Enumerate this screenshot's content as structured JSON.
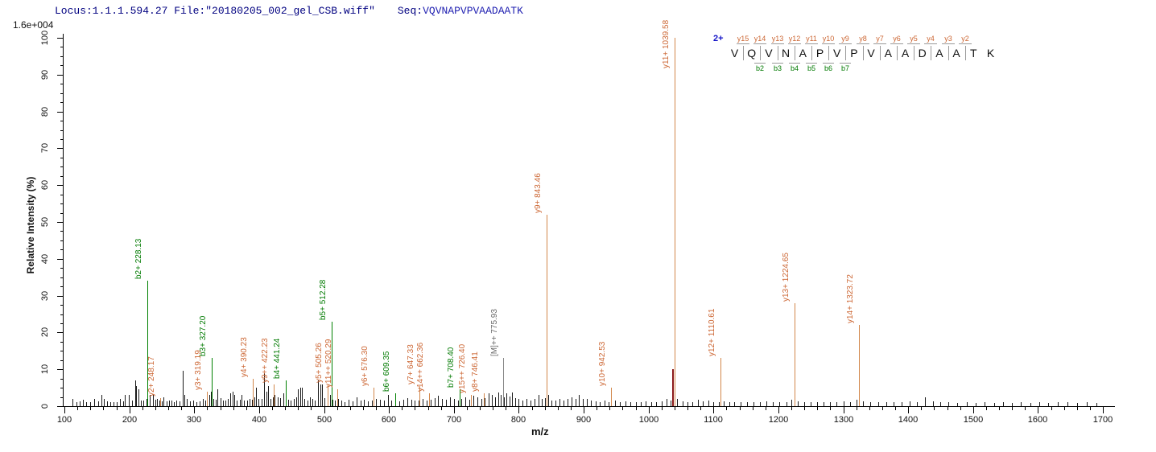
{
  "header": {
    "locus_file": "Locus:1.1.1.594.27 File:\"20180205_002_gel_CSB.wiff\"",
    "seq_label": "Seq:",
    "seq_value": "VQVNAPVPVAADAATK"
  },
  "colors": {
    "header_text": "#000080",
    "sequence_text": "#2222b2",
    "charge_text": "#1414c8",
    "b_ion": "#007a00",
    "b_line": "#008000",
    "y_ion": "#cc6633",
    "y_line": "#d2874b",
    "precursor": "#666666",
    "precursor_line": "#888888",
    "isotope_line": "#8b1a1a",
    "noise_line": "#1a1a1a",
    "axis": "#000000"
  },
  "chart_data": {
    "type": "bar",
    "subtype": "ms2-fragment-spectrum",
    "xlabel": "m/z",
    "ylabel": "Relative  Intensity  (%)",
    "y_scale_label": "1.6e+004",
    "xlim": [
      100,
      1700
    ],
    "ylim": [
      0,
      100
    ],
    "x_major_tick_step": 100,
    "x_minor_tick_step": 20,
    "y_major_tick_step": 10,
    "y_minor_tick_step": 2.5,
    "x_ticks": [
      100,
      200,
      300,
      400,
      500,
      600,
      700,
      800,
      900,
      1000,
      1100,
      1200,
      1300,
      1400,
      1500,
      1600,
      1700
    ],
    "y_ticks": [
      0,
      10,
      20,
      30,
      40,
      50,
      60,
      70,
      80,
      90,
      100
    ],
    "grid": false,
    "legend": "none",
    "peptide": {
      "charge_label": "2+",
      "residues": [
        "V",
        "Q",
        "V",
        "N",
        "A",
        "P",
        "V",
        "P",
        "V",
        "A",
        "A",
        "D",
        "A",
        "A",
        "T",
        "K"
      ],
      "y_ions": [
        "y15",
        "y14",
        "y13",
        "y12",
        "y11",
        "y10",
        "y9",
        "y8",
        "y7",
        "y6",
        "y5",
        "y4",
        "y3",
        "y2"
      ],
      "b_ions": [
        "b2",
        "b3",
        "b4",
        "b5",
        "b6",
        "b7"
      ],
      "b_start_divider": 2
    },
    "labeled_peaks": [
      {
        "label": "b2+ 228.13",
        "mz": 228.13,
        "intensity": 34,
        "series": "b"
      },
      {
        "label": "y2+ 248.17",
        "mz": 248.17,
        "intensity": 2.2,
        "series": "y"
      },
      {
        "label": "y3+ 319.19",
        "mz": 319.19,
        "intensity": 4,
        "series": "y"
      },
      {
        "label": "b3+ 327.20",
        "mz": 327.2,
        "intensity": 13,
        "series": "b"
      },
      {
        "label": "y4+ 390.23",
        "mz": 390.23,
        "intensity": 7.5,
        "series": "y"
      },
      {
        "label": "y9++ 422.23",
        "mz": 422.23,
        "intensity": 6,
        "series": "y"
      },
      {
        "label": "b4+ 441.24",
        "mz": 441.24,
        "intensity": 7,
        "series": "b"
      },
      {
        "label": "y5+ 505.26",
        "mz": 505.26,
        "intensity": 6,
        "series": "y"
      },
      {
        "label": "b5+ 512.28",
        "mz": 512.28,
        "intensity": 23,
        "series": "b"
      },
      {
        "label": "y11++ 520.29",
        "mz": 520.29,
        "intensity": 4.5,
        "series": "y"
      },
      {
        "label": "y6+ 576.30",
        "mz": 576.3,
        "intensity": 5,
        "series": "y"
      },
      {
        "label": "b6+ 609.35",
        "mz": 609.35,
        "intensity": 3.5,
        "series": "b"
      },
      {
        "label": "y7+ 647.33",
        "mz": 647.33,
        "intensity": 5.5,
        "series": "y"
      },
      {
        "label": "y14++ 662.36",
        "mz": 662.36,
        "intensity": 3.5,
        "series": "y"
      },
      {
        "label": "b7+ 708.40",
        "mz": 708.4,
        "intensity": 4.5,
        "series": "b"
      },
      {
        "label": "y15++ 726.40",
        "mz": 726.4,
        "intensity": 3,
        "series": "y"
      },
      {
        "label": "y8+ 746.41",
        "mz": 746.41,
        "intensity": 3.5,
        "series": "y"
      },
      {
        "label": "[M]++ 775.93",
        "mz": 775.93,
        "intensity": 13,
        "series": "M"
      },
      {
        "label": "y9+ 843.46",
        "mz": 843.46,
        "intensity": 52,
        "series": "y"
      },
      {
        "label": "y10+ 942.53",
        "mz": 942.53,
        "intensity": 5,
        "series": "y"
      },
      {
        "label": "y11+ 1039.58",
        "mz": 1039.58,
        "intensity": 100,
        "series": "y"
      },
      {
        "label": "y12+ 1110.61",
        "mz": 1110.61,
        "intensity": 13,
        "series": "y"
      },
      {
        "label": "y13+ 1224.65",
        "mz": 1224.65,
        "intensity": 28,
        "series": "y"
      },
      {
        "label": "y14+ 1323.72",
        "mz": 1323.72,
        "intensity": 22,
        "series": "y"
      }
    ],
    "special_peaks": [
      {
        "mz": 1036.5,
        "intensity": 10,
        "series": "isotope"
      }
    ],
    "noise_peaks": [
      [
        113,
        2
      ],
      [
        118,
        1
      ],
      [
        123,
        1.3
      ],
      [
        128,
        1.8
      ],
      [
        134,
        1
      ],
      [
        140,
        1.2
      ],
      [
        146,
        2
      ],
      [
        152,
        1.3
      ],
      [
        157,
        3
      ],
      [
        161,
        2
      ],
      [
        166,
        1.3
      ],
      [
        171,
        1
      ],
      [
        176,
        1.2
      ],
      [
        181,
        1
      ],
      [
        185,
        2
      ],
      [
        190,
        1.4
      ],
      [
        193,
        3
      ],
      [
        199,
        3
      ],
      [
        204,
        1.5
      ],
      [
        209,
        7
      ],
      [
        211,
        5.5
      ],
      [
        214,
        4.5
      ],
      [
        218,
        1.5
      ],
      [
        222,
        1.6
      ],
      [
        226,
        2
      ],
      [
        231,
        3
      ],
      [
        236,
        3
      ],
      [
        240,
        1.8
      ],
      [
        243,
        2
      ],
      [
        246,
        1.5
      ],
      [
        250,
        1.3
      ],
      [
        253,
        2.5
      ],
      [
        257,
        1.4
      ],
      [
        261,
        1.6
      ],
      [
        265,
        1.5
      ],
      [
        269,
        1.2
      ],
      [
        273,
        1.5
      ],
      [
        277,
        1.4
      ],
      [
        282,
        9.5
      ],
      [
        285,
        3
      ],
      [
        289,
        2
      ],
      [
        293,
        1.3
      ],
      [
        298,
        1.5
      ],
      [
        303,
        1.2
      ],
      [
        308,
        1.4
      ],
      [
        313,
        2
      ],
      [
        317,
        1.5
      ],
      [
        323,
        3
      ],
      [
        326,
        4
      ],
      [
        330,
        2
      ],
      [
        333,
        1.8
      ],
      [
        336,
        4.5
      ],
      [
        340,
        2.2
      ],
      [
        344,
        1.5
      ],
      [
        348,
        1.6
      ],
      [
        352,
        2
      ],
      [
        356,
        3.5
      ],
      [
        359,
        4
      ],
      [
        362,
        3
      ],
      [
        366,
        1.5
      ],
      [
        370,
        1.8
      ],
      [
        373,
        3
      ],
      [
        377,
        1.5
      ],
      [
        381,
        1.6
      ],
      [
        385,
        2
      ],
      [
        389,
        1.8
      ],
      [
        393,
        2.5
      ],
      [
        395,
        5
      ],
      [
        399,
        2
      ],
      [
        404,
        2
      ],
      [
        408,
        9
      ],
      [
        411,
        4
      ],
      [
        414,
        5.5
      ],
      [
        418,
        2
      ],
      [
        421,
        2.4
      ],
      [
        424,
        3
      ],
      [
        429,
        2.5
      ],
      [
        433,
        2.2
      ],
      [
        437,
        3.5
      ],
      [
        441,
        1.6
      ],
      [
        445,
        1.8
      ],
      [
        449,
        1.5
      ],
      [
        453,
        2
      ],
      [
        457,
        2.5
      ],
      [
        460,
        4.5
      ],
      [
        463,
        5
      ],
      [
        466,
        5
      ],
      [
        470,
        2
      ],
      [
        474,
        1.6
      ],
      [
        478,
        2.5
      ],
      [
        482,
        2
      ],
      [
        486,
        1.5
      ],
      [
        491,
        7
      ],
      [
        494,
        6
      ],
      [
        497,
        6
      ],
      [
        501,
        2.2
      ],
      [
        506,
        1.5
      ],
      [
        509,
        3
      ],
      [
        513,
        1.8
      ],
      [
        517,
        1.5
      ],
      [
        522,
        2
      ],
      [
        527,
        1.5
      ],
      [
        532,
        1.2
      ],
      [
        538,
        1.8
      ],
      [
        544,
        1.4
      ],
      [
        550,
        2.4
      ],
      [
        556,
        1.5
      ],
      [
        562,
        1.8
      ],
      [
        568,
        1.4
      ],
      [
        574,
        1.6
      ],
      [
        580,
        2
      ],
      [
        586,
        1.8
      ],
      [
        592,
        1.5
      ],
      [
        598,
        3
      ],
      [
        604,
        1.5
      ],
      [
        610,
        1.8
      ],
      [
        616,
        1.4
      ],
      [
        622,
        1.8
      ],
      [
        628,
        2.2
      ],
      [
        634,
        1.8
      ],
      [
        640,
        1.5
      ],
      [
        646,
        1.6
      ],
      [
        652,
        2
      ],
      [
        658,
        1.5
      ],
      [
        664,
        1.8
      ],
      [
        670,
        2.2
      ],
      [
        676,
        2.8
      ],
      [
        682,
        2
      ],
      [
        688,
        1.8
      ],
      [
        694,
        2.4
      ],
      [
        700,
        2
      ],
      [
        706,
        1.6
      ],
      [
        712,
        2
      ],
      [
        718,
        2.4
      ],
      [
        724,
        1.8
      ],
      [
        730,
        2.8
      ],
      [
        736,
        2.4
      ],
      [
        742,
        2
      ],
      [
        748,
        2.2
      ],
      [
        754,
        3.4
      ],
      [
        759,
        3
      ],
      [
        764,
        2.5
      ],
      [
        768,
        3.8
      ],
      [
        772,
        3
      ],
      [
        777,
        2.5
      ],
      [
        781,
        3.4
      ],
      [
        786,
        2.6
      ],
      [
        790,
        3.8
      ],
      [
        795,
        2.2
      ],
      [
        800,
        2
      ],
      [
        806,
        1.6
      ],
      [
        812,
        2
      ],
      [
        818,
        1.5
      ],
      [
        824,
        2
      ],
      [
        830,
        3
      ],
      [
        835,
        2
      ],
      [
        840,
        2.2
      ],
      [
        846,
        3
      ],
      [
        851,
        1.6
      ],
      [
        857,
        1.5
      ],
      [
        863,
        2
      ],
      [
        869,
        1.5
      ],
      [
        875,
        2
      ],
      [
        881,
        2.4
      ],
      [
        887,
        2
      ],
      [
        893,
        3
      ],
      [
        899,
        2
      ],
      [
        905,
        2
      ],
      [
        911,
        1.5
      ],
      [
        918,
        1.4
      ],
      [
        925,
        1.2
      ],
      [
        932,
        1.5
      ],
      [
        939,
        1.2
      ],
      [
        948,
        1.5
      ],
      [
        956,
        1.2
      ],
      [
        964,
        1.4
      ],
      [
        972,
        1
      ],
      [
        980,
        1.2
      ],
      [
        988,
        1
      ],
      [
        996,
        1.4
      ],
      [
        1004,
        1
      ],
      [
        1012,
        1.2
      ],
      [
        1020,
        1.4
      ],
      [
        1028,
        2
      ],
      [
        1034,
        1.6
      ],
      [
        1044,
        2
      ],
      [
        1052,
        1.4
      ],
      [
        1060,
        1.2
      ],
      [
        1068,
        1
      ],
      [
        1076,
        1.8
      ],
      [
        1084,
        1.4
      ],
      [
        1092,
        1.5
      ],
      [
        1100,
        1.2
      ],
      [
        1108,
        1
      ],
      [
        1116,
        1.4
      ],
      [
        1124,
        1.2
      ],
      [
        1132,
        1
      ],
      [
        1142,
        1.2
      ],
      [
        1152,
        1
      ],
      [
        1162,
        1.2
      ],
      [
        1172,
        1
      ],
      [
        1182,
        1.4
      ],
      [
        1192,
        1
      ],
      [
        1202,
        1.2
      ],
      [
        1212,
        1
      ],
      [
        1220,
        1.8
      ],
      [
        1230,
        1.4
      ],
      [
        1240,
        1
      ],
      [
        1250,
        1.2
      ],
      [
        1260,
        1
      ],
      [
        1270,
        1.2
      ],
      [
        1280,
        1
      ],
      [
        1290,
        1.2
      ],
      [
        1300,
        1.4
      ],
      [
        1310,
        1
      ],
      [
        1320,
        1.8
      ],
      [
        1330,
        1.4
      ],
      [
        1342,
        1.2
      ],
      [
        1354,
        1
      ],
      [
        1366,
        1.2
      ],
      [
        1378,
        1
      ],
      [
        1390,
        1
      ],
      [
        1402,
        1.4
      ],
      [
        1414,
        1.2
      ],
      [
        1426,
        2.4
      ],
      [
        1438,
        1.4
      ],
      [
        1450,
        1
      ],
      [
        1462,
        1
      ],
      [
        1476,
        0.8
      ],
      [
        1490,
        1
      ],
      [
        1504,
        0.8
      ],
      [
        1518,
        1
      ],
      [
        1532,
        0.8
      ],
      [
        1546,
        1
      ],
      [
        1560,
        0.8
      ],
      [
        1574,
        1
      ],
      [
        1588,
        0.8
      ],
      [
        1602,
        1
      ],
      [
        1616,
        0.8
      ],
      [
        1630,
        1
      ],
      [
        1645,
        1.2
      ],
      [
        1660,
        0.8
      ],
      [
        1675,
        1
      ],
      [
        1690,
        0.8
      ]
    ]
  }
}
